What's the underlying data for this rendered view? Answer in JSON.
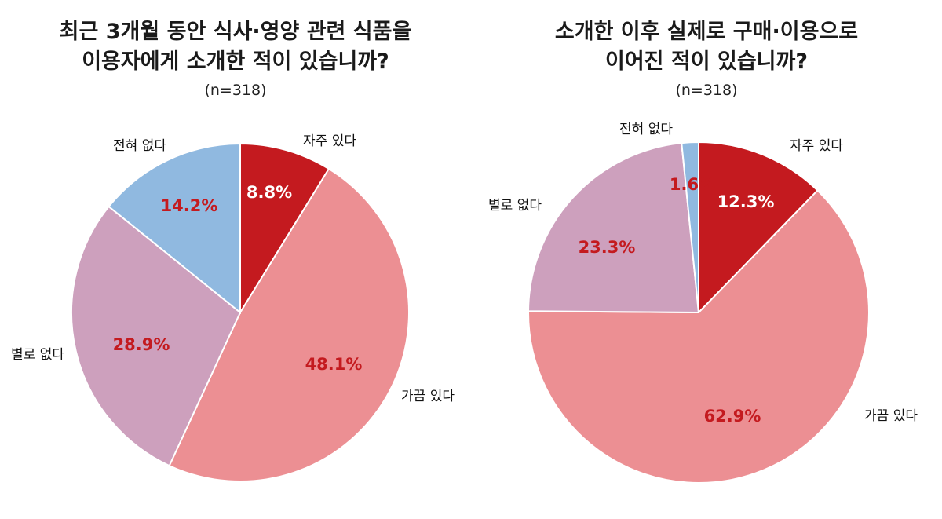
{
  "chart_data": [
    {
      "type": "pie",
      "title_lines": [
        "최근 3개월 동안 식사·영양 관련 식품을",
        "이용자에게 소개한 적이 있습니까?"
      ],
      "subtitle": "(n=318)",
      "slices": [
        {
          "label": "자주 있다",
          "value": 8.8,
          "display": "8.8%",
          "color": "#c41a1f",
          "value_color": "#ffffff"
        },
        {
          "label": "가끔 있다",
          "value": 48.1,
          "display": "48.1%",
          "color": "#ec8f93",
          "value_color": "#c41a1f"
        },
        {
          "label": "별로 없다",
          "value": 28.9,
          "display": "28.9%",
          "color": "#cda0bd",
          "value_color": "#c41a1f"
        },
        {
          "label": "전혀 없다",
          "value": 14.2,
          "display": "14.2%",
          "color": "#90b9e0",
          "value_color": "#c41a1f"
        }
      ]
    },
    {
      "type": "pie",
      "title_lines": [
        "소개한 이후 실제로 구매·이용으로",
        "이어진 적이 있습니까?"
      ],
      "subtitle": "(n=318)",
      "slices": [
        {
          "label": "자주 있다",
          "value": 12.3,
          "display": "12.3%",
          "color": "#c41a1f",
          "value_color": "#ffffff"
        },
        {
          "label": "가끔 있다",
          "value": 62.9,
          "display": "62.9%",
          "color": "#ec8f93",
          "value_color": "#c41a1f"
        },
        {
          "label": "별로 없다",
          "value": 23.3,
          "display": "23.3%",
          "color": "#cda0bd",
          "value_color": "#c41a1f"
        },
        {
          "label": "전혀 없다",
          "value": 1.6,
          "display": "1.6%",
          "color": "#90b9e0",
          "value_color": "#c41a1f"
        }
      ]
    }
  ]
}
